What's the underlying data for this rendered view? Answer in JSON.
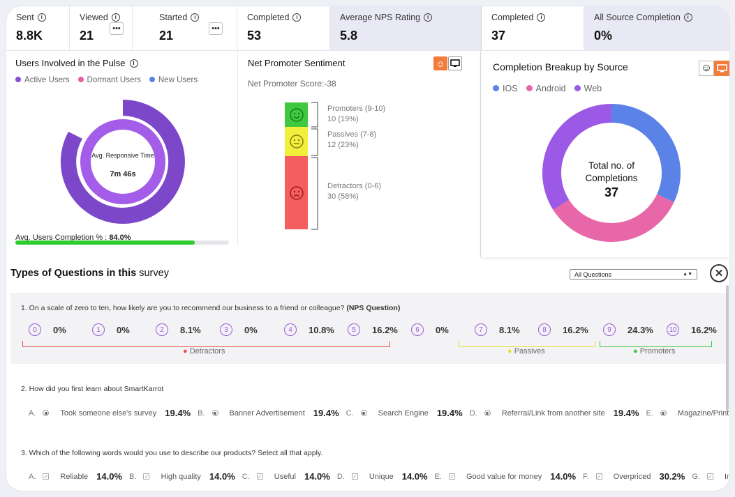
{
  "stats": {
    "sent": {
      "label": "Sent",
      "value": "8.8K"
    },
    "viewed": {
      "label": "Viewed",
      "value": "21"
    },
    "started": {
      "label": "Started",
      "value": "21"
    },
    "completed": {
      "label": "Completed",
      "value": "53"
    },
    "nps": {
      "label": "Average NPS Rating",
      "value": "5.8"
    },
    "completed2": {
      "label": "Completed",
      "value": "37"
    },
    "all_source": {
      "label": "All Source Completion",
      "value": "0%"
    }
  },
  "users_panel": {
    "title": "Users Involved in the Pulse",
    "legend": [
      {
        "label": "Active Users",
        "color": "#8a4fd9"
      },
      {
        "label": "Dormant Users",
        "color": "#e85fa5"
      },
      {
        "label": "New Users",
        "color": "#5b82e6"
      }
    ],
    "center_label": "Avg. Responsive Time",
    "center_value": "7m 46s",
    "completion_label": "Avg. Users Completion % :",
    "completion_value": "84.0%",
    "completion_fraction": 0.84
  },
  "nps_panel": {
    "title": "Net Promoter Sentiment",
    "score_label": "Net Promoter Score:",
    "score_value": "-38",
    "promoters_label": "Promoters (9-10)",
    "promoters_value": "10 (19%)",
    "passives_label": "Passives (7-8)",
    "passives_value": "12 (23%)",
    "detractors_label": "Detractors (0-6)",
    "detractors_value": "30 (58%)"
  },
  "source_panel": {
    "title": "Completion Breakup by Source",
    "legend": [
      {
        "label": "IOS",
        "color": "#5b82e6"
      },
      {
        "label": "Android",
        "color": "#e867a8"
      },
      {
        "label": "Web",
        "color": "#9b59e6"
      }
    ],
    "center_line1": "Total no. of",
    "center_line2": "Completions",
    "center_value": "37"
  },
  "chart_data": {
    "type": "pie",
    "title": "Completion Breakup by Source",
    "categories": [
      "IOS",
      "Android",
      "Web"
    ],
    "values": [
      32,
      34,
      34
    ]
  },
  "questions": {
    "title_bold": "Types of Questions in this",
    "title_rest": "survey",
    "filter_value": "All Questions",
    "q1": {
      "text": "1.  On a scale of zero to ten, how likely are you to recommend our business to a friend or colleague?",
      "tag": "(NPS Question)",
      "scores": [
        {
          "n": "0",
          "pct": "0%"
        },
        {
          "n": "1",
          "pct": "0%"
        },
        {
          "n": "2",
          "pct": "8.1%"
        },
        {
          "n": "3",
          "pct": "0%"
        },
        {
          "n": "4",
          "pct": "10.8%"
        },
        {
          "n": "5",
          "pct": "16.2%"
        },
        {
          "n": "6",
          "pct": "0%"
        },
        {
          "n": "7",
          "pct": "8.1%"
        },
        {
          "n": "8",
          "pct": "16.2%"
        },
        {
          "n": "9",
          "pct": "24.3%"
        },
        {
          "n": "10",
          "pct": "16.2%"
        }
      ],
      "detractors": "Detractors",
      "passives": "Passives",
      "promoters": "Promoters"
    },
    "q2": {
      "text": "2.  How did you first learn about SmartKarrot",
      "options": [
        {
          "letter": "A.",
          "label": "Took someone else's survey",
          "pct": "19.4%"
        },
        {
          "letter": "B.",
          "label": "Banner Advertisement",
          "pct": "19.4%"
        },
        {
          "letter": "C.",
          "label": "Search Engine",
          "pct": "19.4%"
        },
        {
          "letter": "D.",
          "label": "Referral/Link from another site",
          "pct": "19.4%"
        },
        {
          "letter": "E.",
          "label": "Magazine/Print Adve",
          "pct": ""
        }
      ]
    },
    "q3": {
      "text": "3.  Which of the following words would you use to describe our products? Select all that apply.",
      "options": [
        {
          "letter": "A.",
          "label": "Reliable",
          "pct": "14.0%"
        },
        {
          "letter": "B.",
          "label": "High quality",
          "pct": "14.0%"
        },
        {
          "letter": "C.",
          "label": "Useful",
          "pct": "14.0%"
        },
        {
          "letter": "D.",
          "label": "Unique",
          "pct": "14.0%"
        },
        {
          "letter": "E.",
          "label": "Good value for money",
          "pct": "14.0%"
        },
        {
          "letter": "F.",
          "label": "Overpriced",
          "pct": "30.2%"
        },
        {
          "letter": "G.",
          "label": "Impra",
          "pct": ""
        }
      ]
    }
  }
}
